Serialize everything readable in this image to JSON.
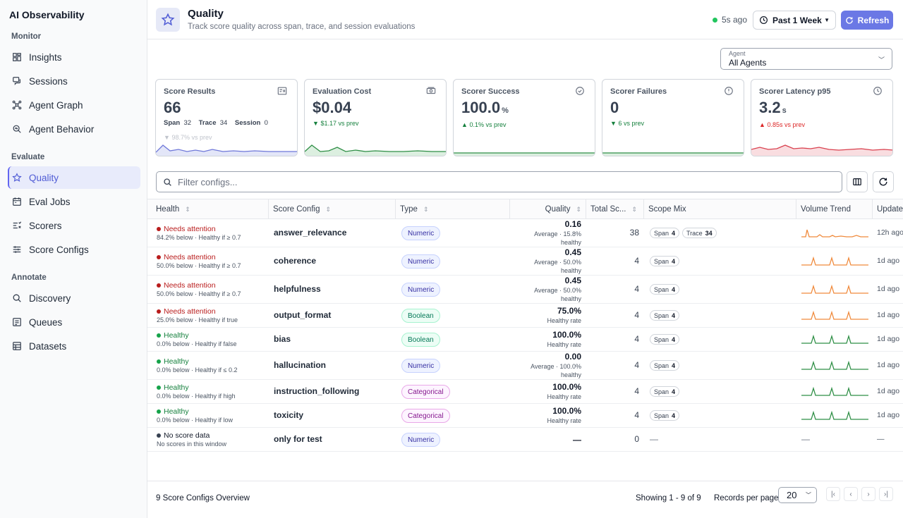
{
  "app": {
    "title": "AI Observability"
  },
  "sidebar": {
    "sections": [
      {
        "label": "Monitor"
      },
      {
        "label": "Evaluate"
      },
      {
        "label": "Annotate"
      }
    ],
    "items": [
      {
        "label": "Insights",
        "icon": "dashboard-icon"
      },
      {
        "label": "Sessions",
        "icon": "chat-icon"
      },
      {
        "label": "Agent Graph",
        "icon": "graph-icon"
      },
      {
        "label": "Agent Behavior",
        "icon": "behavior-icon"
      },
      {
        "label": "Quality",
        "icon": "star-icon",
        "active": true
      },
      {
        "label": "Eval Jobs",
        "icon": "calendar-icon"
      },
      {
        "label": "Scorers",
        "icon": "scorers-icon"
      },
      {
        "label": "Score Configs",
        "icon": "sliders-icon"
      },
      {
        "label": "Discovery",
        "icon": "search-icon"
      },
      {
        "label": "Queues",
        "icon": "queue-icon"
      },
      {
        "label": "Datasets",
        "icon": "table-icon"
      }
    ]
  },
  "header": {
    "title": "Quality",
    "subtitle": "Track score quality across span, trace, and session evaluations",
    "last_updated": "5s ago",
    "period": "Past 1 Week",
    "refresh_label": "Refresh"
  },
  "agent_select": {
    "label": "Agent",
    "value": "All Agents"
  },
  "cards": [
    {
      "title": "Score Results",
      "value": "66",
      "unit": "",
      "delta": "98.7% vs prev",
      "delta_dir": "down",
      "color": "#c0c4cc",
      "line": "#6f78d9",
      "fill": "#e3e6f8",
      "meta": [
        {
          "k": "Span",
          "v": "32"
        },
        {
          "k": "Trace",
          "v": "34"
        },
        {
          "k": "Session",
          "v": "0"
        }
      ]
    },
    {
      "title": "Evaluation Cost",
      "value": "$0.04",
      "unit": "",
      "delta": "$1.17 vs prev",
      "delta_dir": "down",
      "color": "#15803d",
      "line": "#2f8f46",
      "fill": "#dcefe0"
    },
    {
      "title": "Scorer Success",
      "value": "100.0",
      "unit": "%",
      "delta": "0.1% vs prev",
      "delta_dir": "up",
      "color": "#15803d",
      "line": "#2f8f46",
      "fill": "#dcefe0"
    },
    {
      "title": "Scorer Failures",
      "value": "0",
      "unit": "",
      "delta": "6 vs prev",
      "delta_dir": "down",
      "color": "#15803d",
      "line": "#2f8f46",
      "fill": "#dcefe0"
    },
    {
      "title": "Scorer Latency p95",
      "value": "3.2",
      "unit": "s",
      "delta": "0.85s vs prev",
      "delta_dir": "up",
      "color": "#dc2626",
      "line": "#d9414f",
      "fill": "#f9dde0"
    }
  ],
  "filter": {
    "placeholder": "Filter configs..."
  },
  "columns": [
    "Health",
    "Score Config",
    "Type",
    "Quality",
    "Total Sc...",
    "Scope Mix",
    "Volume Trend",
    "Updated"
  ],
  "rows": [
    {
      "status": "Needs attention",
      "status_color": "#b91c1c",
      "dot": "#b91c1c",
      "detail": "84.2% below · Healthy if ≥ 0.7",
      "config": "answer_relevance",
      "type": "Numeric",
      "quality": "0.16",
      "quality_sub": "Average · 15.8% healthy",
      "total": "38",
      "scope": [
        {
          "k": "Span",
          "v": "4"
        },
        {
          "k": "Trace",
          "v": "34"
        }
      ],
      "updated": "12h ago",
      "trend_color": "#f08a3c"
    },
    {
      "status": "Needs attention",
      "status_color": "#b91c1c",
      "dot": "#b91c1c",
      "detail": "50.0% below · Healthy if ≥ 0.7",
      "config": "coherence",
      "type": "Numeric",
      "quality": "0.45",
      "quality_sub": "Average · 50.0% healthy",
      "total": "4",
      "scope": [
        {
          "k": "Span",
          "v": "4"
        }
      ],
      "updated": "1d ago",
      "trend_color": "#f08a3c"
    },
    {
      "status": "Needs attention",
      "status_color": "#b91c1c",
      "dot": "#b91c1c",
      "detail": "50.0% below · Healthy if ≥ 0.7",
      "config": "helpfulness",
      "type": "Numeric",
      "quality": "0.45",
      "quality_sub": "Average · 50.0% healthy",
      "total": "4",
      "scope": [
        {
          "k": "Span",
          "v": "4"
        }
      ],
      "updated": "1d ago",
      "trend_color": "#f08a3c"
    },
    {
      "status": "Needs attention",
      "status_color": "#b91c1c",
      "dot": "#b91c1c",
      "detail": "25.0% below · Healthy if true",
      "config": "output_format",
      "type": "Boolean",
      "quality": "75.0%",
      "quality_sub": "Healthy rate",
      "total": "4",
      "scope": [
        {
          "k": "Span",
          "v": "4"
        }
      ],
      "updated": "1d ago",
      "trend_color": "#f08a3c"
    },
    {
      "status": "Healthy",
      "status_color": "#15803d",
      "dot": "#16a34a",
      "detail": "0.0% below · Healthy if false",
      "config": "bias",
      "type": "Boolean",
      "quality": "100.0%",
      "quality_sub": "Healthy rate",
      "total": "4",
      "scope": [
        {
          "k": "Span",
          "v": "4"
        }
      ],
      "updated": "1d ago",
      "trend_color": "#2f8f46"
    },
    {
      "status": "Healthy",
      "status_color": "#15803d",
      "dot": "#16a34a",
      "detail": "0.0% below · Healthy if ≤ 0.2",
      "config": "hallucination",
      "type": "Numeric",
      "quality": "0.00",
      "quality_sub": "Average · 100.0% healthy",
      "total": "4",
      "scope": [
        {
          "k": "Span",
          "v": "4"
        }
      ],
      "updated": "1d ago",
      "trend_color": "#2f8f46"
    },
    {
      "status": "Healthy",
      "status_color": "#15803d",
      "dot": "#16a34a",
      "detail": "0.0% below · Healthy if high",
      "config": "instruction_following",
      "type": "Categorical",
      "quality": "100.0%",
      "quality_sub": "Healthy rate",
      "total": "4",
      "scope": [
        {
          "k": "Span",
          "v": "4"
        }
      ],
      "updated": "1d ago",
      "trend_color": "#2f8f46"
    },
    {
      "status": "Healthy",
      "status_color": "#15803d",
      "dot": "#16a34a",
      "detail": "0.0% below · Healthy if low",
      "config": "toxicity",
      "type": "Categorical",
      "quality": "100.0%",
      "quality_sub": "Healthy rate",
      "total": "4",
      "scope": [
        {
          "k": "Span",
          "v": "4"
        }
      ],
      "updated": "1d ago",
      "trend_color": "#2f8f46"
    },
    {
      "status": "No score data",
      "status_color": "#111827",
      "dot": "#374151",
      "detail": "No scores in this window",
      "config": "only for test",
      "type": "Numeric",
      "quality": "—",
      "quality_sub": "",
      "total": "0",
      "scope": [],
      "scope_empty": "—",
      "updated": "—",
      "trend_empty": "—"
    }
  ],
  "footer": {
    "summary": "9 Score Configs Overview",
    "showing": "Showing 1 - 9 of 9",
    "rpp_label": "Records per page",
    "rpp_value": "20"
  }
}
